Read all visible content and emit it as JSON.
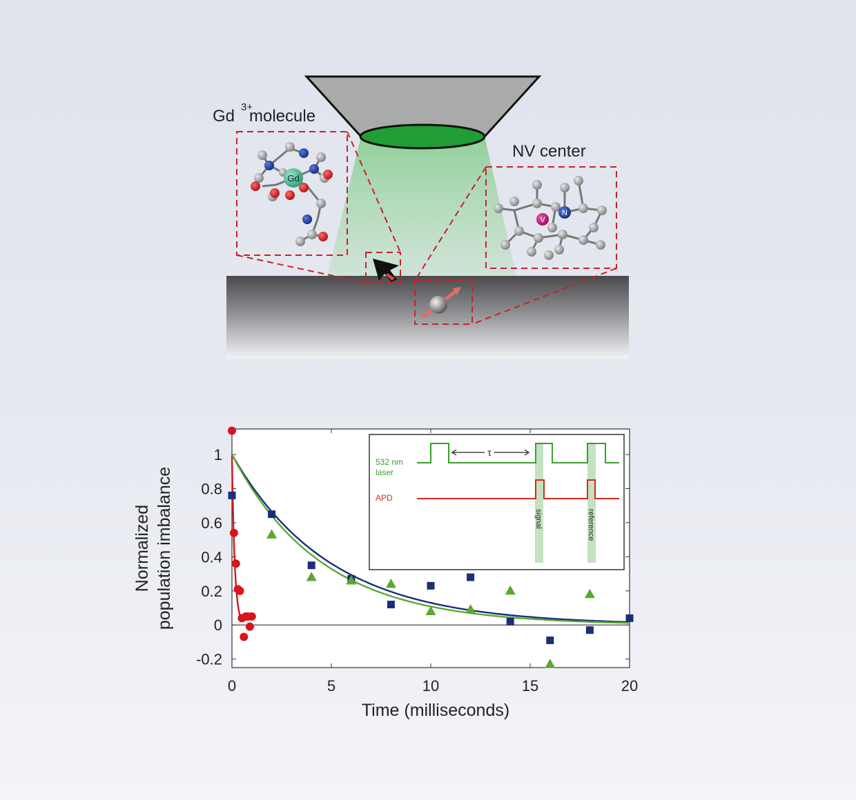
{
  "diagram": {
    "gd_label_main": "Gd",
    "gd_label_sup": "3+",
    "gd_label_rest": "molecule",
    "gd_atom_label": "Gd",
    "nv_label": "NV center",
    "v_atom_label": "V",
    "n_atom_label": "N",
    "colors": {
      "laser_green": "#3fbf3a",
      "box_red": "#c8202a",
      "carbon": "#9a9a9a",
      "nitrogen": "#1a3a9a",
      "oxygen": "#d0161e",
      "gd": "#3cb88a",
      "vacancy": "#b0106a"
    }
  },
  "chart_data": {
    "type": "scatter",
    "xlabel": "Time (milliseconds)",
    "ylabel_line1": "Normalized",
    "ylabel_line2": "population imbalance",
    "xlim": [
      0,
      20
    ],
    "ylim": [
      -0.25,
      1.15
    ],
    "xticks": [
      "0",
      "5",
      "10",
      "15",
      "20"
    ],
    "yticks": [
      "-0.2",
      "0",
      "0.2",
      "0.4",
      "0.6",
      "0.8",
      "1"
    ],
    "xtick_values": [
      0,
      5,
      10,
      15,
      20
    ],
    "ytick_values": [
      -0.2,
      0,
      0.2,
      0.4,
      0.6,
      0.8,
      1
    ],
    "zero_line": true,
    "series": [
      {
        "marker": "circle",
        "color": "#d8141c",
        "x": [
          0,
          0.1,
          0.2,
          0.3,
          0.4,
          0.5,
          0.6,
          0.7,
          0.8,
          0.9,
          1.0
        ],
        "y": [
          1.14,
          0.54,
          0.36,
          0.21,
          0.2,
          0.04,
          -0.07,
          0.05,
          0.05,
          -0.01,
          0.05
        ],
        "fit_tau": 0.14,
        "fit_xmax": 0.42
      },
      {
        "marker": "square",
        "color": "#1a2e7a",
        "x": [
          0,
          2,
          4,
          6,
          8,
          10,
          12,
          14,
          16,
          18,
          20
        ],
        "y": [
          0.76,
          0.65,
          0.35,
          0.27,
          0.12,
          0.23,
          0.28,
          0.02,
          -0.09,
          -0.03,
          0.04
        ],
        "fit_tau": 4.9,
        "fit_xmax": 20
      },
      {
        "marker": "triangle",
        "color": "#5aa832",
        "x": [
          2,
          4,
          6,
          8,
          10,
          12,
          14,
          16,
          18
        ],
        "y": [
          0.53,
          0.28,
          0.26,
          0.24,
          0.08,
          0.09,
          0.2,
          -0.23,
          0.18
        ],
        "fit_tau": 4.5,
        "fit_xmax": 20
      }
    ],
    "inset": {
      "laser_label_line1": "532 nm",
      "laser_label_line2": "laser",
      "apd_label": "APD",
      "tau_label": "τ",
      "signal_label": "signal",
      "reference_label": "reference",
      "laser_color": "#3a9e2c",
      "apd_color": "#d42a18"
    }
  }
}
